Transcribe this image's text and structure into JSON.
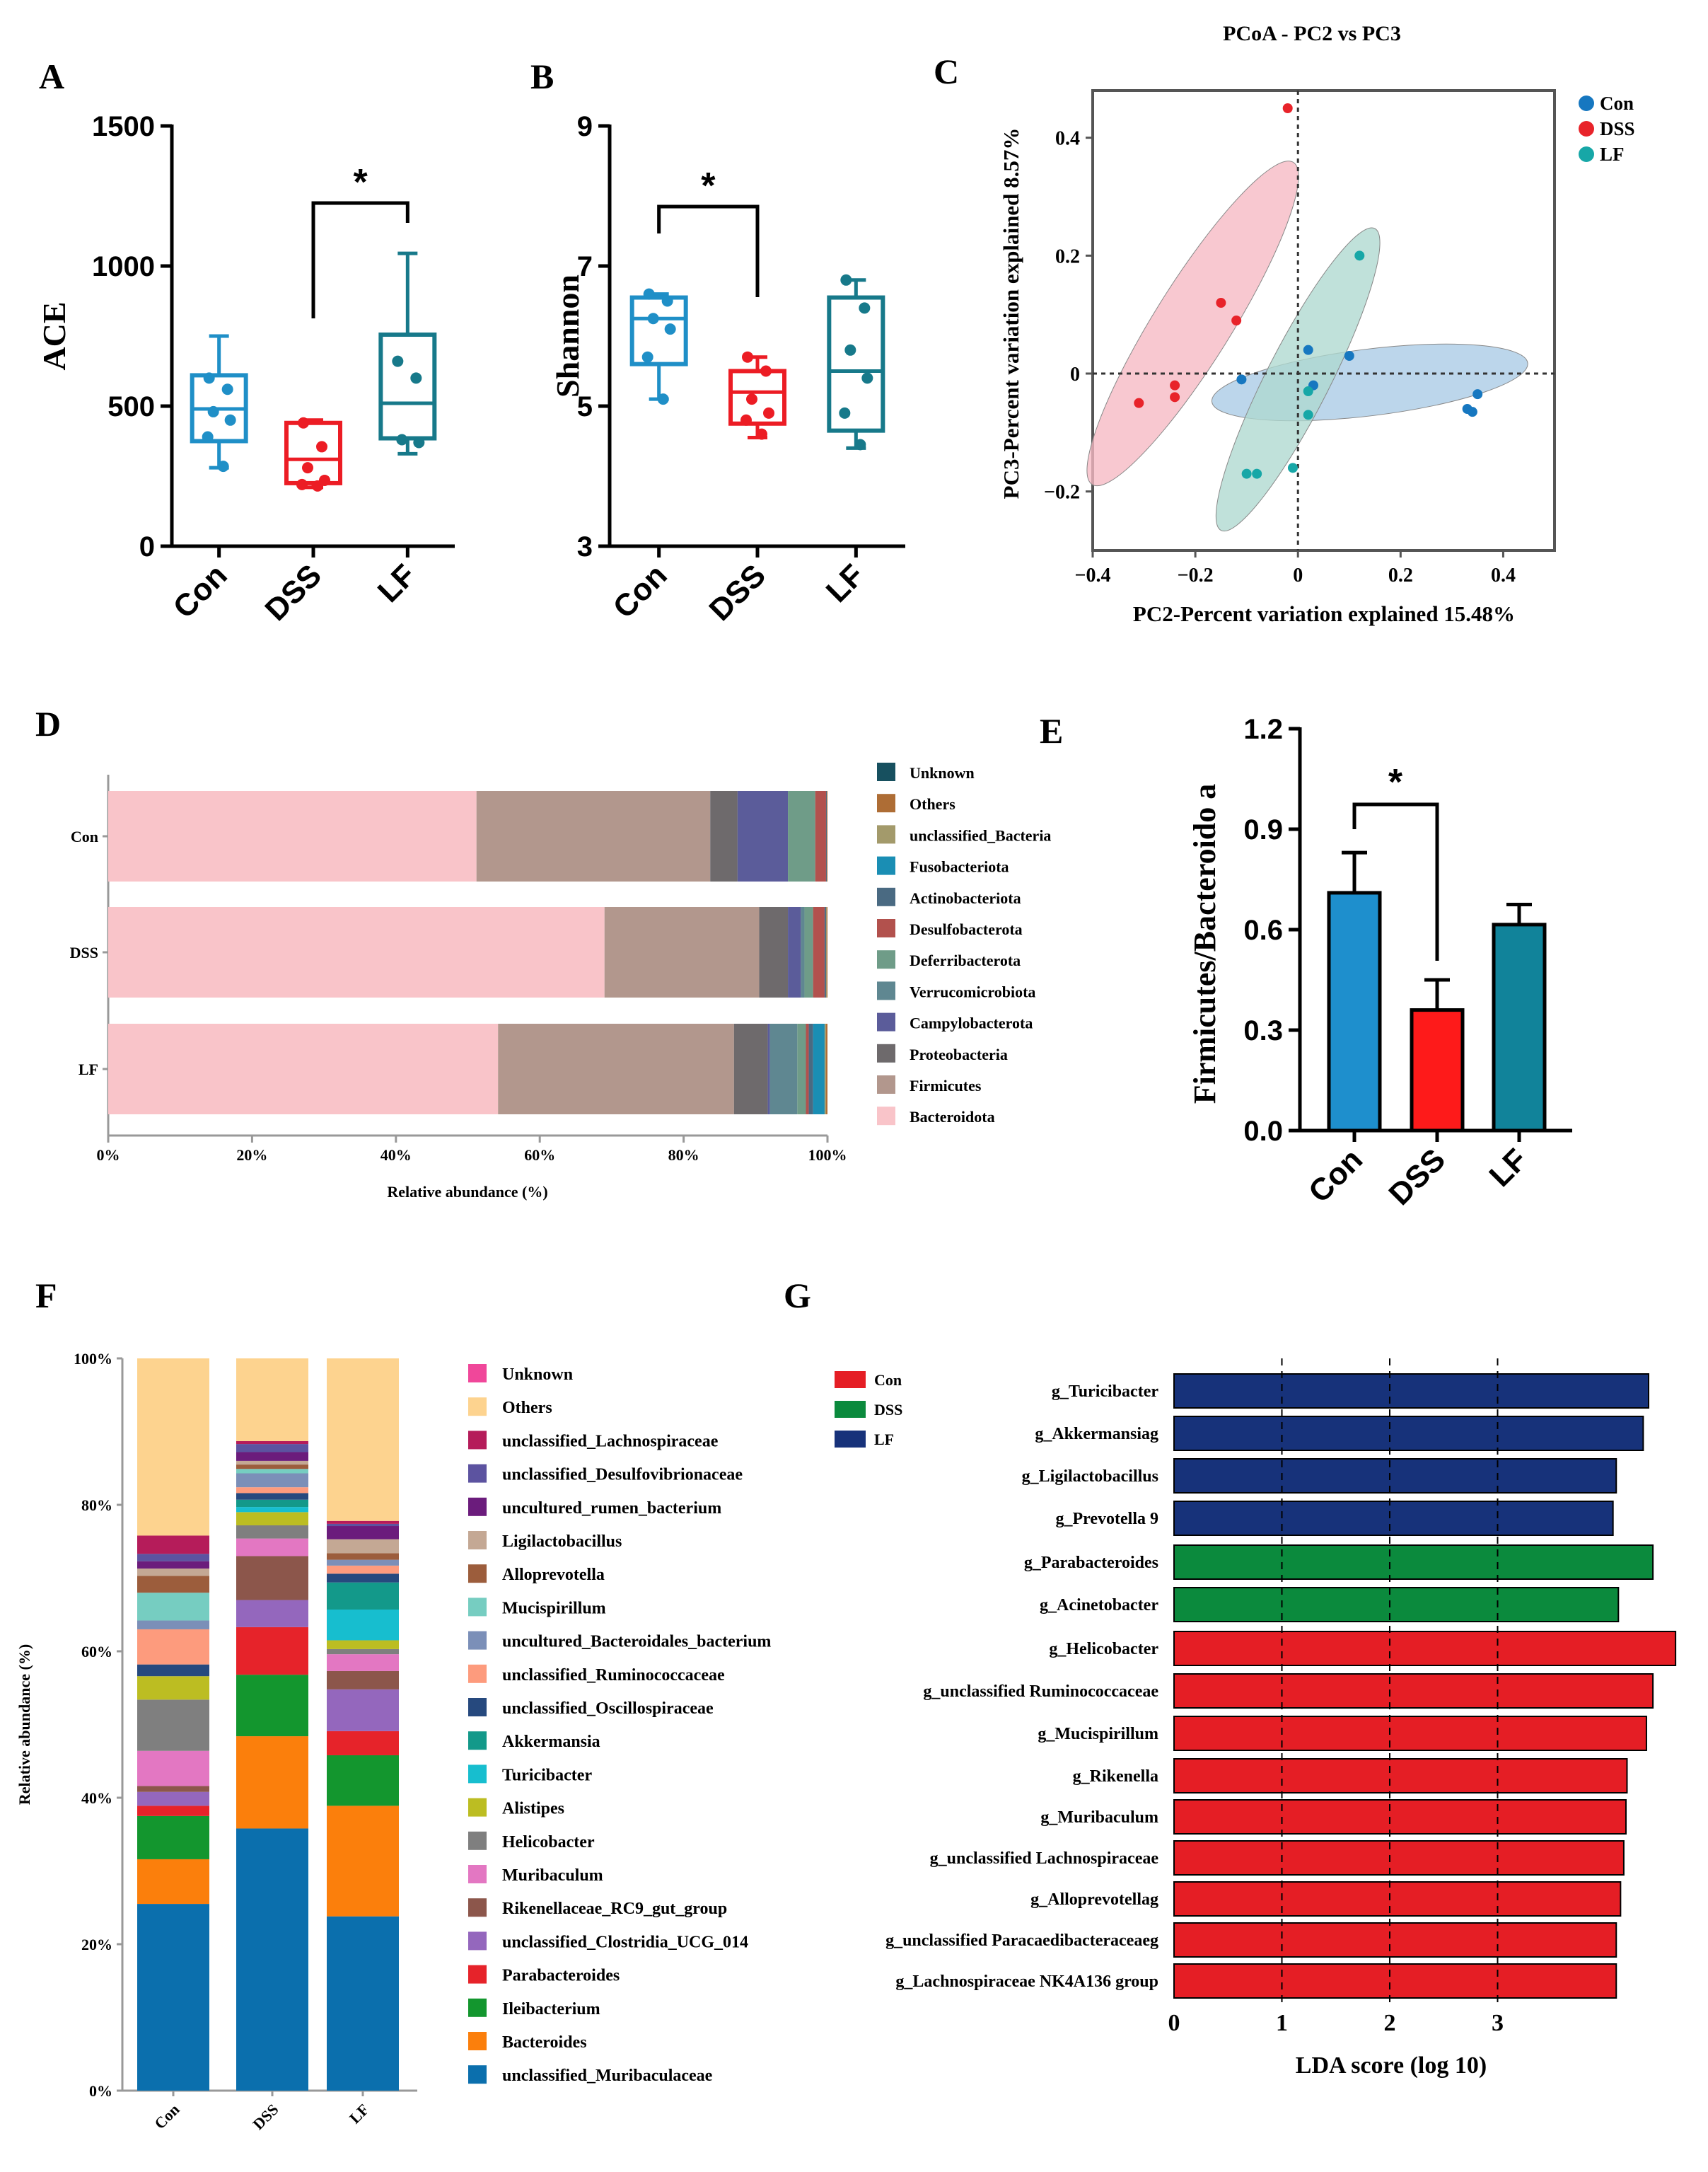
{
  "chart_data": [
    {
      "panel": "A",
      "type": "box",
      "ylabel": "ACE",
      "ylim": [
        0,
        1500
      ],
      "yticks": [
        "0",
        "500",
        "1000",
        "1500"
      ],
      "categories": [
        "Con",
        "DSS",
        "LF"
      ],
      "colors": [
        "#1f8fc7",
        "#ec1c24",
        "#17798a"
      ],
      "boxes": [
        {
          "min": 280,
          "q1": 375,
          "median": 490,
          "q3": 610,
          "max": 750,
          "points": [
            600,
            560,
            480,
            450,
            390,
            285
          ]
        },
        {
          "min": 210,
          "q1": 225,
          "median": 310,
          "q3": 440,
          "max": 450,
          "points": [
            440,
            355,
            280,
            235,
            220,
            215
          ]
        },
        {
          "min": 330,
          "q1": 385,
          "median": 510,
          "q3": 755,
          "max": 1045,
          "points": [
            660,
            600,
            380,
            370
          ]
        }
      ],
      "significance": "*"
    },
    {
      "panel": "B",
      "type": "box",
      "ylabel": "Shannon",
      "ylim": [
        3,
        9
      ],
      "yticks": [
        "3",
        "5",
        "7",
        "9"
      ],
      "categories": [
        "Con",
        "DSS",
        "LF"
      ],
      "colors": [
        "#1f8fc7",
        "#ec1c24",
        "#17798a"
      ],
      "boxes": [
        {
          "min": 5.1,
          "q1": 5.6,
          "median": 6.25,
          "q3": 6.55,
          "max": 6.6,
          "points": [
            6.6,
            6.5,
            6.25,
            6.1,
            5.7,
            5.1
          ]
        },
        {
          "min": 4.55,
          "q1": 4.75,
          "median": 5.2,
          "q3": 5.5,
          "max": 5.7,
          "points": [
            5.7,
            5.5,
            5.1,
            4.9,
            4.8,
            4.6
          ]
        },
        {
          "min": 4.4,
          "q1": 4.65,
          "median": 5.5,
          "q3": 6.55,
          "max": 6.8,
          "points": [
            6.8,
            6.4,
            5.8,
            5.4,
            4.9,
            4.45
          ]
        }
      ],
      "significance": "*"
    },
    {
      "panel": "C",
      "type": "scatter",
      "title": "PCoA - PC2 vs PC3",
      "xlabel": "PC2-Percent variation explained 15.48%",
      "ylabel": "PC3-Percent variation explained 8.57%",
      "xlim": [
        -0.4,
        0.5
      ],
      "ylim": [
        -0.3,
        0.48
      ],
      "xticks": [
        "−0.4",
        "−0.2",
        "0",
        "0.2",
        "0.4"
      ],
      "yticks": [
        "−0.2",
        "0",
        "0.2",
        "0.4"
      ],
      "series": [
        {
          "name": "Con",
          "color": "#1677c0",
          "points": [
            [
              -0.11,
              -0.01
            ],
            [
              0.02,
              0.04
            ],
            [
              0.03,
              -0.02
            ],
            [
              0.1,
              0.03
            ],
            [
              0.33,
              -0.06
            ],
            [
              0.35,
              -0.035
            ],
            [
              0.34,
              -0.065
            ]
          ]
        },
        {
          "name": "DSS",
          "color": "#e8232a",
          "points": [
            [
              -0.02,
              0.45
            ],
            [
              -0.15,
              0.12
            ],
            [
              -0.12,
              0.09
            ],
            [
              -0.24,
              -0.02
            ],
            [
              -0.24,
              -0.04
            ],
            [
              -0.31,
              -0.05
            ]
          ]
        },
        {
          "name": "LF",
          "color": "#17a7a7",
          "points": [
            [
              0.12,
              0.2
            ],
            [
              0.02,
              -0.07
            ],
            [
              -0.08,
              -0.17
            ],
            [
              -0.1,
              -0.17
            ],
            [
              -0.01,
              -0.16
            ],
            [
              0.02,
              -0.03
            ]
          ]
        }
      ],
      "legend": [
        "Con",
        "DSS",
        "LF"
      ]
    },
    {
      "panel": "D",
      "type": "stacked-bar-horizontal",
      "xlabel": "Relative abundance (%)",
      "xticks": [
        "0%",
        "20%",
        "40%",
        "60%",
        "80%",
        "100%"
      ],
      "categories": [
        "Con",
        "DSS",
        "LF"
      ],
      "series": [
        {
          "name": "Bacteroidota",
          "color": "#f9c4c9",
          "values": [
            51.2,
            69.0,
            54.2
          ]
        },
        {
          "name": "Firmicutes",
          "color": "#b2978d",
          "values": [
            32.5,
            21.5,
            32.8
          ]
        },
        {
          "name": "Proteobacteria",
          "color": "#6e6a6c",
          "values": [
            3.8,
            4.0,
            4.7
          ]
        },
        {
          "name": "Campylobacterota",
          "color": "#5b5c9a",
          "values": [
            7.0,
            1.8,
            0.3
          ]
        },
        {
          "name": "Verrucomicrobiota",
          "color": "#5f8791",
          "values": [
            0.0,
            0.5,
            3.8
          ]
        },
        {
          "name": "Deferribacterota",
          "color": "#6f9c88",
          "values": [
            3.8,
            1.2,
            1.2
          ]
        },
        {
          "name": "Desulfobacterota",
          "color": "#b2514d",
          "values": [
            1.5,
            1.6,
            0.4
          ]
        },
        {
          "name": "Actinobacteriota",
          "color": "#4a6a82",
          "values": [
            0.1,
            0.2,
            0.6
          ]
        },
        {
          "name": "Fusobacteriota",
          "color": "#1a8eb4",
          "values": [
            0.0,
            0.0,
            1.6
          ]
        },
        {
          "name": "unclassified_Bacteria",
          "color": "#a39a6b",
          "values": [
            0.0,
            0.1,
            0.2
          ]
        },
        {
          "name": "Others",
          "color": "#ae6d35",
          "values": [
            0.1,
            0.1,
            0.2
          ]
        },
        {
          "name": "Unknown",
          "color": "#17505f",
          "values": [
            0.0,
            0.0,
            0.0
          ]
        }
      ],
      "legend_order": [
        "Unknown",
        "Others",
        "unclassified_Bacteria",
        "Fusobacteriota",
        "Actinobacteriota",
        "Desulfobacterota",
        "Deferribacterota",
        "Verrucomicrobiota",
        "Campylobacterota",
        "Proteobacteria",
        "Firmicutes",
        "Bacteroidota"
      ]
    },
    {
      "panel": "E",
      "type": "bar",
      "ylabel": "Firmicutes/Bacteroido a",
      "ylim": [
        0,
        1.2
      ],
      "yticks": [
        "0.0",
        "0.3",
        "0.6",
        "0.9",
        "1.2"
      ],
      "categories": [
        "Con",
        "DSS",
        "LF"
      ],
      "values": [
        0.71,
        0.36,
        0.615
      ],
      "errors": [
        0.12,
        0.09,
        0.06
      ],
      "colors": [
        "#1e8fcd",
        "#fe1a1a",
        "#11839a"
      ],
      "significance": "*"
    },
    {
      "panel": "F",
      "type": "stacked-bar",
      "ylabel": "Relative abundance (%)",
      "yticks": [
        "0%",
        "20%",
        "40%",
        "60%",
        "80%",
        "100%"
      ],
      "categories": [
        "Con",
        "DSS",
        "LF"
      ],
      "series": [
        {
          "name": "unclassified_Muribaculaceae",
          "color": "#0b6fad",
          "values": [
            25.5,
            35.8,
            23.8
          ]
        },
        {
          "name": "Bacteroides",
          "color": "#fb7f0c",
          "values": [
            6.1,
            12.6,
            15.1
          ]
        },
        {
          "name": "Ileibacterium",
          "color": "#13962e",
          "values": [
            5.9,
            8.4,
            6.9
          ]
        },
        {
          "name": "Parabacteroides",
          "color": "#e6232a",
          "values": [
            1.4,
            6.5,
            3.3
          ]
        },
        {
          "name": "unclassified_Clostridia_UCG_014",
          "color": "#9467bd",
          "values": [
            1.9,
            3.7,
            5.7
          ]
        },
        {
          "name": "Rikenellaceae_RC9_gut_group",
          "color": "#8c564b",
          "values": [
            0.8,
            6.0,
            2.5
          ]
        },
        {
          "name": "Muribaculum",
          "color": "#e377c2",
          "values": [
            4.8,
            2.4,
            2.3
          ]
        },
        {
          "name": "Helicobacter",
          "color": "#7f7f7f",
          "values": [
            7.0,
            1.8,
            0.7
          ]
        },
        {
          "name": "Alistipes",
          "color": "#bcbd22",
          "values": [
            3.2,
            1.8,
            1.2
          ]
        },
        {
          "name": "Turicibacter",
          "color": "#17becf",
          "values": [
            0.0,
            0.7,
            4.2
          ]
        },
        {
          "name": "Akkermansia",
          "color": "#13998a",
          "values": [
            0.0,
            1.0,
            3.7
          ]
        },
        {
          "name": "unclassified_Oscillospiraceae",
          "color": "#26497e",
          "values": [
            1.6,
            0.9,
            1.2
          ]
        },
        {
          "name": "unclassified_Ruminococcaceae",
          "color": "#fd9b7d",
          "values": [
            4.8,
            0.8,
            1.1
          ]
        },
        {
          "name": "uncultured_Bacteroidales_bacterium",
          "color": "#7b8fb8",
          "values": [
            1.2,
            1.9,
            0.8
          ]
        },
        {
          "name": "Mucispirillum",
          "color": "#76cdc1",
          "values": [
            3.8,
            0.6,
            0.0
          ]
        },
        {
          "name": "Alloprevotella",
          "color": "#9c5d3c",
          "values": [
            2.3,
            0.6,
            0.9
          ]
        },
        {
          "name": "Ligilactobacillus",
          "color": "#c4a894",
          "values": [
            1.0,
            0.5,
            1.9
          ]
        },
        {
          "name": "uncultured_rumen_bacterium",
          "color": "#6b1c7c",
          "values": [
            1.0,
            1.2,
            1.8
          ]
        },
        {
          "name": "unclassified_Desulfovibrionaceae",
          "color": "#5c53a0",
          "values": [
            1.0,
            1.1,
            0.3
          ]
        },
        {
          "name": "unclassified_Lachnospiraceae",
          "color": "#b51c5a",
          "values": [
            2.5,
            0.4,
            0.4
          ]
        },
        {
          "name": "Others",
          "color": "#fdd38f",
          "values": [
            24.2,
            11.3,
            22.2
          ]
        },
        {
          "name": "Unknown",
          "color": "#f0479a",
          "values": [
            0.0,
            0.0,
            0.0
          ]
        }
      ]
    },
    {
      "panel": "G",
      "type": "bar-horizontal",
      "xlabel": "LDA score (log 10)",
      "xticks": [
        "0",
        "1",
        "2",
        "3"
      ],
      "xlim": [
        0,
        4.7
      ],
      "groups": [
        {
          "name": "Con",
          "color": "#e51e25"
        },
        {
          "name": "DSS",
          "color": "#0b8a3d"
        },
        {
          "name": "LF",
          "color": "#17327a"
        }
      ],
      "bars": [
        {
          "label": "g_Turicibacter",
          "group": "LF",
          "value": 4.4
        },
        {
          "label": "g_Akkermansiag",
          "group": "LF",
          "value": 4.35
        },
        {
          "label": "g_Ligilactobacillus",
          "group": "LF",
          "value": 4.1
        },
        {
          "label": "g_Prevotella 9",
          "group": "LF",
          "value": 4.07
        },
        {
          "label": "g_Parabacteroides",
          "group": "DSS",
          "value": 4.44
        },
        {
          "label": "g_Acinetobacter",
          "group": "DSS",
          "value": 4.12
        },
        {
          "label": "g_Helicobacter",
          "group": "Con",
          "value": 4.65
        },
        {
          "label": "g_unclassified Ruminococcaceae",
          "group": "Con",
          "value": 4.44
        },
        {
          "label": "g_Mucispirillum",
          "group": "Con",
          "value": 4.38
        },
        {
          "label": "g_Rikenella",
          "group": "Con",
          "value": 4.2
        },
        {
          "label": "g_Muribaculum",
          "group": "Con",
          "value": 4.19
        },
        {
          "label": "g_unclassified Lachnospiraceae",
          "group": "Con",
          "value": 4.17
        },
        {
          "label": "g_Alloprevotellag",
          "group": "Con",
          "value": 4.14
        },
        {
          "label": "g_unclassified Paracaedibacteraceaeg",
          "group": "Con",
          "value": 4.1
        },
        {
          "label": "g_Lachnospiraceae NK4A136 group",
          "group": "Con",
          "value": 4.1
        }
      ]
    }
  ]
}
